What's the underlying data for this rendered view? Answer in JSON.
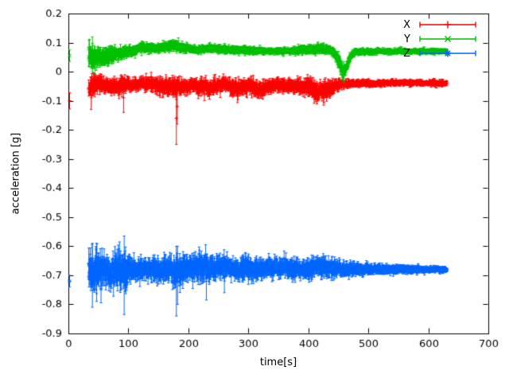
{
  "chart_data": {
    "type": "scatter",
    "style": "points-with-errorbars",
    "title": "",
    "xlabel": "time[s]",
    "ylabel": "acceleration [g]",
    "xlim": [
      0,
      700
    ],
    "ylim": [
      -0.9,
      0.2
    ],
    "grid": false,
    "background_color": "#ffffff",
    "axis_color": "#000000",
    "legend_position": "top-right-inside",
    "xticks": {
      "values": [
        0,
        100,
        200,
        300,
        400,
        500,
        600,
        700
      ],
      "labels": [
        "0",
        "100",
        "200",
        "300",
        "400",
        "500",
        "600",
        "700"
      ]
    },
    "yticks": {
      "values": [
        0.2,
        0.1,
        0,
        -0.1,
        -0.2,
        -0.3,
        -0.4,
        -0.5,
        -0.6,
        -0.7,
        -0.8,
        -0.9
      ],
      "labels": [
        "0.2",
        "0.1",
        "0",
        "-0.1",
        "-0.2",
        "-0.3",
        "-0.4",
        "-0.5",
        "-0.6",
        "-0.7",
        "-0.8",
        "-0.9"
      ]
    },
    "sample": {
      "t_start": 34,
      "t_end": 631,
      "dt": 0.4
    },
    "series": [
      {
        "name": "X",
        "color": "#ff0000",
        "marker": "plus",
        "first_point": {
          "x": 2,
          "y": -0.1,
          "err": 0.028
        },
        "band": [
          [
            35,
            -0.055,
            0.045
          ],
          [
            50,
            -0.04,
            0.035
          ],
          [
            70,
            -0.05,
            0.03
          ],
          [
            90,
            -0.045,
            0.035
          ],
          [
            110,
            -0.045,
            0.022
          ],
          [
            140,
            -0.04,
            0.03
          ],
          [
            165,
            -0.05,
            0.035
          ],
          [
            185,
            -0.055,
            0.035
          ],
          [
            210,
            -0.05,
            0.028
          ],
          [
            235,
            -0.055,
            0.035
          ],
          [
            260,
            -0.045,
            0.028
          ],
          [
            285,
            -0.06,
            0.035
          ],
          [
            300,
            -0.05,
            0.03
          ],
          [
            315,
            -0.065,
            0.035
          ],
          [
            330,
            -0.05,
            0.03
          ],
          [
            345,
            -0.045,
            0.025
          ],
          [
            370,
            -0.05,
            0.028
          ],
          [
            395,
            -0.05,
            0.035
          ],
          [
            415,
            -0.065,
            0.04
          ],
          [
            435,
            -0.06,
            0.035
          ],
          [
            450,
            -0.045,
            0.022
          ],
          [
            465,
            -0.04,
            0.015
          ],
          [
            500,
            -0.04,
            0.013
          ],
          [
            560,
            -0.038,
            0.012
          ],
          [
            630,
            -0.04,
            0.012
          ]
        ],
        "spikes": [
          {
            "x": 180,
            "y": -0.16,
            "err": 0.09
          },
          {
            "x": 181.5,
            "y": -0.12,
            "err": 0.06
          },
          {
            "x": 92,
            "y": -0.09,
            "err": 0.05
          },
          {
            "x": 38,
            "y": -0.08,
            "err": 0.05
          }
        ]
      },
      {
        "name": "Y",
        "color": "#00c000",
        "marker": "cross",
        "first_point": {
          "x": 2,
          "y": 0.055,
          "err": 0.02
        },
        "band": [
          [
            35,
            0.055,
            0.045
          ],
          [
            45,
            0.05,
            0.04
          ],
          [
            60,
            0.05,
            0.035
          ],
          [
            75,
            0.06,
            0.03
          ],
          [
            90,
            0.065,
            0.022
          ],
          [
            105,
            0.07,
            0.02
          ],
          [
            125,
            0.085,
            0.02
          ],
          [
            145,
            0.08,
            0.018
          ],
          [
            160,
            0.085,
            0.02
          ],
          [
            180,
            0.09,
            0.022
          ],
          [
            195,
            0.08,
            0.018
          ],
          [
            215,
            0.075,
            0.015
          ],
          [
            240,
            0.08,
            0.016
          ],
          [
            270,
            0.075,
            0.015
          ],
          [
            300,
            0.075,
            0.015
          ],
          [
            330,
            0.07,
            0.013
          ],
          [
            360,
            0.07,
            0.013
          ],
          [
            390,
            0.075,
            0.018
          ],
          [
            420,
            0.08,
            0.02
          ],
          [
            440,
            0.075,
            0.02
          ],
          [
            450,
            0.04,
            0.03
          ],
          [
            458,
            -0.005,
            0.022
          ],
          [
            464,
            0.015,
            0.022
          ],
          [
            470,
            0.05,
            0.018
          ],
          [
            478,
            0.068,
            0.013
          ],
          [
            520,
            0.07,
            0.011
          ],
          [
            630,
            0.07,
            0.01
          ]
        ],
        "spikes": [
          {
            "x": 40,
            "y": 0.06,
            "err": 0.06
          },
          {
            "x": 459,
            "y": 0.0,
            "err": 0.035
          }
        ]
      },
      {
        "name": "Z",
        "color": "#0066ff",
        "marker": "star",
        "first_point": {
          "x": 2,
          "y": -0.72,
          "err": 0.02
        },
        "band": [
          [
            35,
            -0.685,
            0.075
          ],
          [
            45,
            -0.69,
            0.08
          ],
          [
            55,
            -0.685,
            0.07
          ],
          [
            70,
            -0.69,
            0.06
          ],
          [
            85,
            -0.68,
            0.075
          ],
          [
            95,
            -0.685,
            0.07
          ],
          [
            110,
            -0.68,
            0.045
          ],
          [
            130,
            -0.68,
            0.04
          ],
          [
            150,
            -0.68,
            0.045
          ],
          [
            170,
            -0.68,
            0.05
          ],
          [
            185,
            -0.685,
            0.06
          ],
          [
            200,
            -0.675,
            0.05
          ],
          [
            220,
            -0.67,
            0.055
          ],
          [
            240,
            -0.675,
            0.05
          ],
          [
            260,
            -0.67,
            0.045
          ],
          [
            280,
            -0.675,
            0.04
          ],
          [
            300,
            -0.68,
            0.045
          ],
          [
            320,
            -0.675,
            0.04
          ],
          [
            345,
            -0.675,
            0.035
          ],
          [
            370,
            -0.675,
            0.04
          ],
          [
            395,
            -0.68,
            0.04
          ],
          [
            415,
            -0.67,
            0.04
          ],
          [
            435,
            -0.675,
            0.04
          ],
          [
            455,
            -0.68,
            0.03
          ],
          [
            480,
            -0.68,
            0.025
          ],
          [
            520,
            -0.68,
            0.02
          ],
          [
            560,
            -0.68,
            0.016
          ],
          [
            600,
            -0.68,
            0.013
          ],
          [
            630,
            -0.68,
            0.012
          ]
        ],
        "spikes": [
          {
            "x": 93,
            "y": -0.7,
            "err": 0.135
          },
          {
            "x": 40,
            "y": -0.7,
            "err": 0.11
          },
          {
            "x": 47,
            "y": -0.69,
            "err": 0.1
          },
          {
            "x": 180,
            "y": -0.72,
            "err": 0.12
          },
          {
            "x": 182,
            "y": -0.7,
            "err": 0.1
          },
          {
            "x": 230,
            "y": -0.71,
            "err": 0.075
          },
          {
            "x": 260,
            "y": -0.7,
            "err": 0.06
          }
        ]
      }
    ]
  }
}
